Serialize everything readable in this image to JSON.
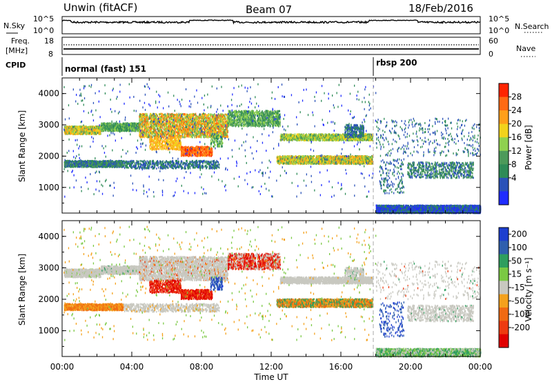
{
  "header": {
    "title": "Unwin (fitACF)",
    "beam": "Beam 07",
    "date": "18/Feb/2016"
  },
  "colors": {
    "power_scale": [
      "#1f2cff",
      "#2a52b8",
      "#2e8b57",
      "#4c9a5a",
      "#8fd14f",
      "#f2d21c",
      "#ff9f1a",
      "#ff6a13",
      "#ff2400"
    ],
    "velocity_scale": [
      "#1d3fcf",
      "#2f5fae",
      "#2e9e5e",
      "#7ac943",
      "#c8c8c0",
      "#f4a11c",
      "#f06a12",
      "#ee3b10",
      "#e00000"
    ],
    "ground_scatter": "#c8c8c0"
  },
  "chart_data": [
    {
      "type": "line",
      "name_left": "N.Sky",
      "name_right": "N.Search",
      "yticks_left": [
        "10^5",
        "10^0"
      ],
      "yticks_right": [
        "10^5",
        "10^0"
      ],
      "gaps_hours": [
        [
          0.0,
          0.5
        ],
        [
          7.3,
          9.8
        ],
        [
          17.6,
          20.4
        ]
      ]
    },
    {
      "type": "line",
      "name_left": "Freq.",
      "unit_left": "[MHz]",
      "name_right": "Nave",
      "yticks_left": [
        "18",
        "8"
      ],
      "yticks_right": [
        "60",
        "0"
      ]
    },
    {
      "type": "table",
      "label": "CPID",
      "segments": [
        {
          "name": "normal (fast) 151",
          "start_hour": 0,
          "end_hour": 18
        },
        {
          "name": "rbsp 200",
          "start_hour": 18,
          "end_hour": 24
        }
      ]
    },
    {
      "type": "heatmap",
      "panel": "power",
      "ylabel": "Slant Range [km]",
      "yticks": [
        1000,
        2000,
        3000,
        4000
      ],
      "ylim": [
        180,
        4500
      ],
      "colorbar_label": "Power [dB]",
      "colorbar_ticks": [
        4,
        8,
        12,
        16,
        20,
        24,
        28
      ],
      "colorbar_range": [
        0,
        32
      ]
    },
    {
      "type": "heatmap",
      "panel": "velocity",
      "ylabel": "Slant Range [km]",
      "yticks": [
        1000,
        2000,
        3000,
        4000
      ],
      "ylim": [
        180,
        4500
      ],
      "colorbar_label": "Velocity [m s⁻¹]",
      "colorbar_ticks": [
        "200",
        "100",
        "50",
        "15",
        "-15",
        "-50",
        "-100",
        "-200"
      ],
      "xlabel": "Time UT",
      "xticks": [
        "00:00",
        "04:00",
        "08:00",
        "12:00",
        "16:00",
        "20:00",
        "00:00"
      ],
      "xlim_hours": [
        0,
        24
      ]
    }
  ]
}
